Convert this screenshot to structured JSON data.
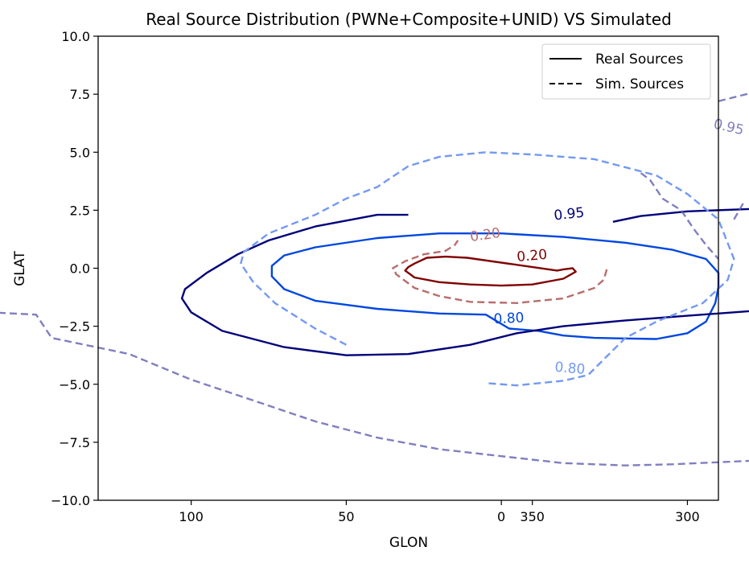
{
  "chart_data": {
    "type": "contour",
    "title": "Real Source Distribution (PWNe+Composite+UNID) VS Simulated",
    "xlabel": "GLON",
    "ylabel": "GLAT",
    "xlim": [
      130,
      290
    ],
    "ylim": [
      -10,
      10
    ],
    "x_axis_note": "longitude decreases left to right, wrapping through 0/360",
    "xticks": [
      {
        "glon": 100,
        "label": "100"
      },
      {
        "glon": 50,
        "label": "50"
      },
      {
        "glon": 0,
        "label": "0"
      },
      {
        "glon": 350,
        "label": "350"
      },
      {
        "glon": 300,
        "label": "300"
      }
    ],
    "yticks": [
      {
        "value": 10,
        "label": "10.0"
      },
      {
        "value": 7.5,
        "label": "7.5"
      },
      {
        "value": 5,
        "label": "5.0"
      },
      {
        "value": 2.5,
        "label": "2.5"
      },
      {
        "value": 0,
        "label": "0.0"
      },
      {
        "value": -2.5,
        "label": "−2.5"
      },
      {
        "value": -5,
        "label": "−5.0"
      },
      {
        "value": -7.5,
        "label": "−7.5"
      },
      {
        "value": -10,
        "label": "−10.0"
      }
    ],
    "legend": {
      "position": "top-right",
      "entries": [
        {
          "label": "Real Sources",
          "style": "solid"
        },
        {
          "label": "Sim. Sources",
          "style": "dashed"
        }
      ]
    },
    "grid": false,
    "series": [
      {
        "group": "real",
        "level": "0.20",
        "color": "#800000",
        "style": "solid",
        "opacity": 1,
        "closed": true,
        "points": [
          [
            11,
            0.45
          ],
          [
            18,
            0.5
          ],
          [
            24,
            0.45
          ],
          [
            28,
            0.2
          ],
          [
            30,
            0.05
          ],
          [
            31,
            -0.1
          ],
          [
            28,
            -0.4
          ],
          [
            20,
            -0.6
          ],
          [
            10,
            -0.7
          ],
          [
            0,
            -0.75
          ],
          [
            -10,
            -0.7
          ],
          [
            -20,
            -0.45
          ],
          [
            -24,
            -0.15
          ],
          [
            -23,
            0.0
          ],
          [
            -20,
            -0.05
          ],
          [
            -18,
            -0.1
          ]
        ],
        "label": {
          "x": -10,
          "y": 0.35,
          "angle": -5
        }
      },
      {
        "group": "real",
        "level": "0.80",
        "color": "#0047e0",
        "style": "solid",
        "opacity": 1,
        "closed": true,
        "points": [
          [
            -2.5,
            -2.6
          ],
          [
            -12,
            -2.7
          ],
          [
            -20,
            -2.9
          ],
          [
            -30,
            -3.0
          ],
          [
            -50,
            -3.05
          ],
          [
            -60,
            -2.8
          ],
          [
            -66,
            -2.3
          ],
          [
            -69,
            -1.5
          ],
          [
            -70,
            -0.8
          ],
          [
            -70,
            -0.2
          ],
          [
            -66,
            0.4
          ],
          [
            -55,
            0.8
          ],
          [
            -40,
            1.1
          ],
          [
            -20,
            1.35
          ],
          [
            0,
            1.5
          ],
          [
            20,
            1.5
          ],
          [
            40,
            1.3
          ],
          [
            60,
            0.9
          ],
          [
            70,
            0.55
          ],
          [
            74,
            0.1
          ],
          [
            74,
            -0.35
          ],
          [
            70,
            -0.9
          ],
          [
            60,
            -1.4
          ],
          [
            40,
            -1.75
          ],
          [
            20,
            -1.95
          ],
          [
            5,
            -2.0
          ]
        ],
        "label": {
          "x": -2.5,
          "y": -2.35,
          "angle": -3
        }
      },
      {
        "group": "real",
        "level": "0.95",
        "color": "#00007a",
        "style": "solid",
        "opacity": 1,
        "closed": false,
        "points": [
          [
            -36,
            2.0
          ],
          [
            -45,
            2.25
          ],
          [
            -60,
            2.45
          ],
          [
            -80,
            2.55
          ],
          [
            -100,
            2.55
          ],
          [
            -110,
            2.5
          ],
          [
            -118,
            2.2
          ],
          [
            -122,
            1.6
          ],
          [
            -125,
            1.0
          ],
          [
            -130,
            0.55
          ],
          [
            -135,
            0.35
          ],
          [
            -138,
            0.2
          ],
          [
            -140,
            0.15
          ],
          [
            -140,
            -1.8
          ],
          [
            -130,
            -1.8
          ],
          [
            -118,
            -1.85
          ],
          [
            -110,
            -1.65
          ],
          [
            -100,
            -1.6
          ],
          [
            -90,
            -1.6
          ],
          [
            -80,
            -1.85
          ],
          [
            -60,
            -2.05
          ],
          [
            -40,
            -2.25
          ],
          [
            -20,
            -2.5
          ],
          [
            -5,
            -2.8
          ],
          [
            10,
            -3.3
          ],
          [
            30,
            -3.7
          ],
          [
            50,
            -3.75
          ],
          [
            70,
            -3.4
          ],
          [
            90,
            -2.7
          ],
          [
            100,
            -1.9
          ],
          [
            103,
            -1.3
          ],
          [
            102,
            -0.9
          ],
          [
            95,
            -0.2
          ],
          [
            85,
            0.6
          ],
          [
            75,
            1.2
          ],
          [
            60,
            1.8
          ],
          [
            40,
            2.3
          ],
          [
            30,
            2.3
          ]
        ],
        "label": {
          "x": -22,
          "y": 2.15,
          "angle": -6
        }
      },
      {
        "group": "sim",
        "level": "0.20",
        "color": "#b96d6d",
        "style": "dashed",
        "opacity": 1,
        "closed": false,
        "points": [
          [
            -34,
            -0.05
          ],
          [
            -33,
            -0.5
          ],
          [
            -30,
            -0.85
          ],
          [
            -20,
            -1.3
          ],
          [
            -5,
            -1.5
          ],
          [
            10,
            -1.45
          ],
          [
            20,
            -1.2
          ],
          [
            28,
            -0.85
          ],
          [
            34,
            -0.25
          ],
          [
            34.5,
            0.0
          ],
          [
            35,
            0.0
          ],
          [
            31,
            0.3
          ],
          [
            25,
            0.6
          ],
          [
            18,
            0.75
          ],
          [
            15,
            1.0
          ],
          [
            14,
            1.2
          ]
        ],
        "label": {
          "x": 5,
          "y": 1.25,
          "angle": -8
        }
      },
      {
        "group": "sim",
        "level": "0.80",
        "color": "#7399f2",
        "style": "dashed",
        "opacity": 1,
        "closed": false,
        "points": [
          [
            50,
            -3.3
          ],
          [
            60,
            -2.6
          ],
          [
            73,
            -1.5
          ],
          [
            80,
            -0.6
          ],
          [
            84,
            0.2
          ],
          [
            83,
            0.7
          ],
          [
            75,
            1.5
          ],
          [
            60,
            2.3
          ],
          [
            50,
            3.0
          ],
          [
            40,
            3.5
          ],
          [
            30,
            4.4
          ],
          [
            20,
            4.8
          ],
          [
            5,
            5.0
          ],
          [
            -10,
            4.9
          ],
          [
            -30,
            4.7
          ],
          [
            -50,
            4.0
          ],
          [
            -60,
            3.2
          ],
          [
            -70,
            2.1
          ],
          [
            -75,
            0.4
          ],
          [
            -73,
            -0.5
          ],
          [
            -65,
            -1.5
          ],
          [
            -50,
            -2.3
          ],
          [
            -40,
            -3.0
          ],
          [
            -34,
            -3.8
          ],
          [
            -28,
            -4.6
          ],
          [
            -20,
            -4.85
          ],
          [
            -5,
            -5.05
          ],
          [
            5,
            -4.95
          ]
        ],
        "label": {
          "x": -22,
          "y": -4.5,
          "angle": 5
        }
      },
      {
        "group": "sim",
        "level": "0.95",
        "color": "#6363b3",
        "style": "dashed",
        "opacity": 0.82,
        "closed": false,
        "points": [
          [
            -70,
            7.2
          ],
          [
            -82,
            7.6
          ],
          [
            -90,
            6.6
          ],
          [
            -98,
            5.2
          ],
          [
            -108,
            4.0
          ],
          [
            -115,
            3.1
          ],
          [
            -126,
            2.6
          ],
          [
            -140,
            2.2
          ],
          [
            -142,
            2.1
          ],
          [
            -150,
            1.5
          ],
          [
            -152,
            0.5
          ],
          [
            -151,
            -0.8
          ],
          [
            -150,
            -2.5
          ],
          [
            -149,
            -3.8
          ],
          [
            -148,
            -5.5
          ],
          [
            -141,
            -6.8
          ],
          [
            -134,
            -7.8
          ],
          [
            -120,
            -8.1
          ],
          [
            -105,
            -8.2
          ],
          [
            -80,
            -8.3
          ],
          [
            -55,
            -8.45
          ],
          [
            -40,
            -8.5
          ],
          [
            -20,
            -8.4
          ],
          [
            -10,
            -8.25
          ],
          [
            0,
            -8.1
          ],
          [
            20,
            -7.8
          ],
          [
            40,
            -7.3
          ],
          [
            60,
            -6.6
          ],
          [
            80,
            -5.7
          ],
          [
            100,
            -4.8
          ],
          [
            120,
            -3.7
          ],
          [
            145,
            -3.0
          ],
          [
            150,
            -2.0
          ],
          [
            165,
            -1.9
          ],
          [
            180,
            -1.6
          ]
        ],
        "label": {
          "x": -73,
          "y": 5.9,
          "angle": 13
        }
      },
      {
        "group": "sim",
        "level": "0.95",
        "color": "#6363b3",
        "style": "dashed",
        "opacity": 0.82,
        "closed": false,
        "points": [
          [
            -45,
            4.1
          ],
          [
            -48,
            3.8
          ],
          [
            -52,
            3.0
          ],
          [
            -58,
            2.5
          ],
          [
            -62,
            1.7
          ],
          [
            -66,
            1.0
          ],
          [
            -70,
            0.4
          ]
        ],
        "label": null
      },
      {
        "group": "sim",
        "level": "0.95",
        "color": "#6363b3",
        "style": "dashed",
        "opacity": 0.82,
        "closed": false,
        "points": [
          [
            -75,
            2.1
          ],
          [
            -78,
            2.8
          ]
        ],
        "label": null
      }
    ]
  }
}
